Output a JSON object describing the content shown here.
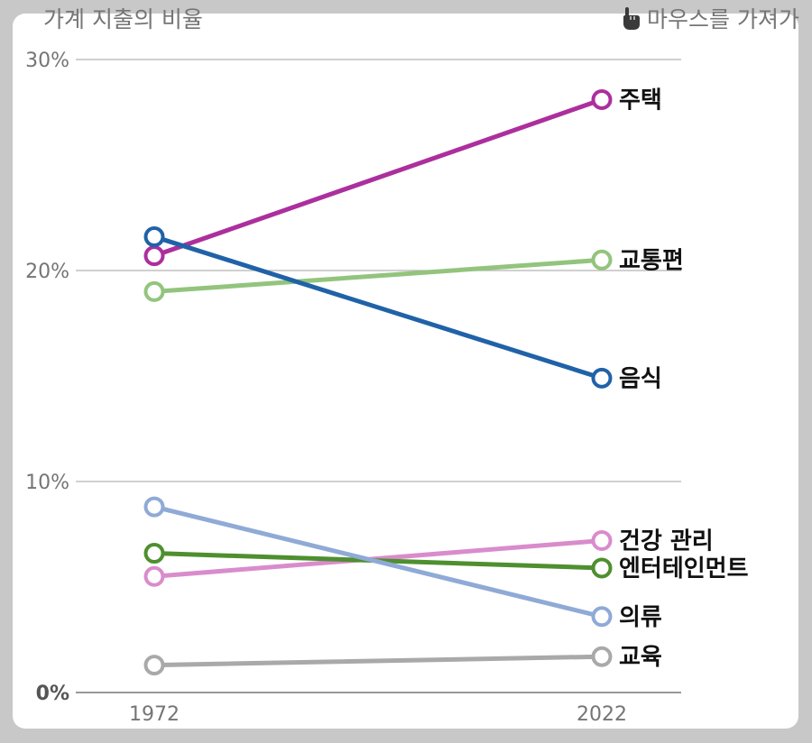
{
  "header": {
    "title": "가계 지출의 비율",
    "hint": "마우스를 가져가",
    "hint_icon": "hand-pointer-icon"
  },
  "chart_data": {
    "type": "line",
    "title": "가계 지출의 비율",
    "x": [
      "1972",
      "2022"
    ],
    "ylim": [
      0,
      30
    ],
    "yticks": [
      "0%",
      "10%",
      "20%",
      "30%"
    ],
    "ytick_values": [
      0,
      10,
      20,
      30
    ],
    "grid": true,
    "series": [
      {
        "name": "주택",
        "values": [
          20.7,
          28.1
        ],
        "color": "#ac2f9d"
      },
      {
        "name": "교통편",
        "values": [
          19.0,
          20.5
        ],
        "color": "#93c47d"
      },
      {
        "name": "음식",
        "values": [
          21.6,
          14.9
        ],
        "color": "#2062a8"
      },
      {
        "name": "건강 관리",
        "values": [
          5.5,
          7.2
        ],
        "color": "#d98ccc"
      },
      {
        "name": "엔터테인먼트",
        "values": [
          6.6,
          5.9
        ],
        "color": "#4e8f2f"
      },
      {
        "name": "의류",
        "values": [
          8.8,
          3.6
        ],
        "color": "#8faad6"
      },
      {
        "name": "교육",
        "values": [
          1.3,
          1.7
        ],
        "color": "#a9a9a9"
      }
    ]
  }
}
